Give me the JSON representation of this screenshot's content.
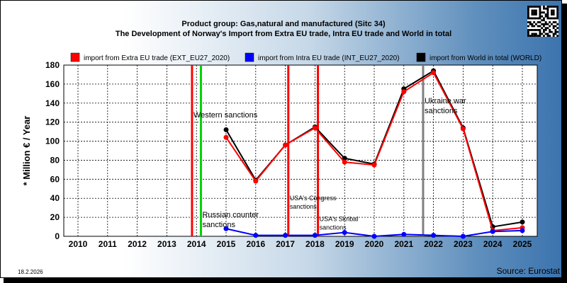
{
  "header": {
    "title_line1": "Product group: Gas,natural and manufactured (Sitc 34)",
    "title_line2": "The Development of Norway's Import from Extra EU trade, Intra EU trade and World in total"
  },
  "footer": {
    "date": "18.2.2026",
    "source": "Source: Eurostat"
  },
  "chart_data": {
    "type": "line",
    "ylabel": "* Million € / Year",
    "ylim": [
      0,
      180
    ],
    "yticks": [
      0,
      20,
      40,
      60,
      80,
      100,
      120,
      140,
      160,
      180
    ],
    "categories": [
      "2010",
      "2011",
      "2012",
      "2013",
      "2014",
      "2015",
      "2016",
      "2017",
      "2018",
      "2019",
      "2020",
      "2021",
      "2022",
      "2023",
      "2024",
      "2025"
    ],
    "grid": true,
    "legend_position": "top",
    "series": [
      {
        "name": "import from Extra EU trade (EXT_EU27_2020)",
        "color": "#ff0000",
        "values": [
          null,
          null,
          null,
          null,
          null,
          104,
          58,
          96,
          114,
          78,
          75,
          152,
          172,
          113,
          6,
          9
        ]
      },
      {
        "name": "import from Intra EU trade (INT_EU27_2020)",
        "color": "#0000ff",
        "values": [
          null,
          null,
          null,
          null,
          null,
          8,
          1,
          1,
          1,
          4,
          0,
          2,
          1,
          0,
          5,
          6
        ]
      },
      {
        "name": "import from World in total (WORLD)",
        "color": "#000000",
        "values": [
          null,
          null,
          null,
          null,
          null,
          112,
          59,
          96,
          115,
          82,
          76,
          155,
          174,
          114,
          10,
          15
        ]
      }
    ],
    "events": [
      {
        "label": "Western sanctions",
        "year": 2013.85,
        "color": "#ff0000",
        "text_year": 2013.85,
        "text_value": 125
      },
      {
        "label": "Russian counter sanctions",
        "year": 2014.15,
        "color": "#00d000",
        "text_year": 2014.15,
        "text_value": 20
      },
      {
        "label": "USA's Congress sanctions",
        "year": 2017.1,
        "color": "#ff0000",
        "text_year": 2017.1,
        "text_value": 38
      },
      {
        "label": "USA's Skribal sanctions",
        "year": 2018.1,
        "color": "#ff0000",
        "text_year": 2018.1,
        "text_value": 16
      },
      {
        "label": "Ukraine war sanctions",
        "year": 2021.65,
        "color": "#808080",
        "text_year": 2021.65,
        "text_value": 140
      }
    ]
  }
}
